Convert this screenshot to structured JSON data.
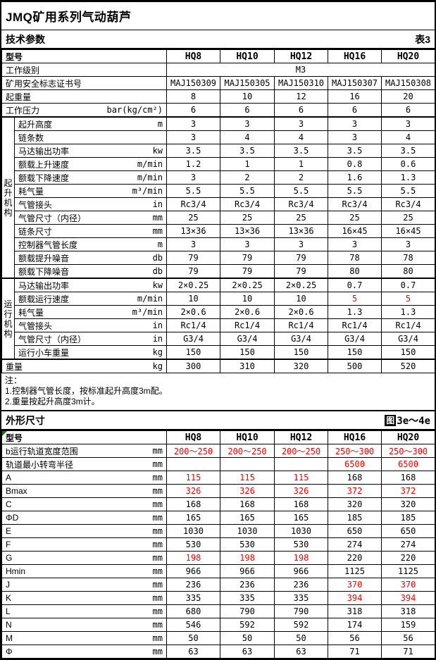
{
  "page": {
    "title": "JMQ矿用系列气动葫芦"
  },
  "colors": {
    "highlight_red": "#FF0000",
    "marker_green": "#0B7A0B",
    "border": "#000000",
    "background": "#FFFFFF"
  },
  "tech": {
    "heading": "技术参数",
    "ref": "表3",
    "model_label": "型号",
    "columns": [
      "HQ8",
      "HQ10",
      "HQ12",
      "HQ16",
      "HQ20"
    ],
    "groups": {
      "lift": "起升机构",
      "travel": "运行机构"
    },
    "rows": [
      {
        "label": "工作级别",
        "unit": "",
        "merged": "M3"
      },
      {
        "label": "矿用安全标志证书号",
        "unit": "",
        "values": [
          "MAJ150309",
          "MAJ150305",
          "MAJ150310",
          "MAJ150307",
          "MAJ150308"
        ]
      },
      {
        "label": "起重量",
        "unit": "",
        "values": [
          "8",
          "10",
          "12",
          "16",
          "20"
        ]
      },
      {
        "label": "工作压力",
        "unit": "bar(kg/cm²)",
        "values": [
          "6",
          "6",
          "6",
          "6",
          "6"
        ]
      },
      {
        "group": "lift",
        "label": "起升高度",
        "unit": "m",
        "values": [
          "3",
          "3",
          "3",
          "3",
          "3"
        ],
        "sep": true
      },
      {
        "group": "lift",
        "label": "链条数",
        "unit": "",
        "values": [
          "3",
          "4",
          "4",
          "3",
          "4"
        ]
      },
      {
        "group": "lift",
        "label": "马达输出功率",
        "unit": "kw",
        "values": [
          "3.5",
          "3.5",
          "3.5",
          "3.5",
          "3.5"
        ]
      },
      {
        "group": "lift",
        "label": "额载上升速度",
        "unit": "m/min",
        "values": [
          "1.2",
          "1",
          "1",
          "0.8",
          "0.6"
        ]
      },
      {
        "group": "lift",
        "label": "额载下降速度",
        "unit": "m/min",
        "values": [
          "3",
          "2",
          "2",
          "1.6",
          "1.3"
        ]
      },
      {
        "group": "lift",
        "label": "耗气量",
        "unit": "m³/min",
        "values": [
          "5.5",
          "5.5",
          "5.5",
          "5.5",
          "5.5"
        ]
      },
      {
        "group": "lift",
        "label": "气管接头",
        "unit": "in",
        "values": [
          "Rc3/4",
          "Rc3/4",
          "Rc3/4",
          "Rc3/4",
          "Rc3/4"
        ]
      },
      {
        "group": "lift",
        "label": "气管尺寸（内径）",
        "unit": "mm",
        "values": [
          "25",
          "25",
          "25",
          "25",
          "25"
        ]
      },
      {
        "group": "lift",
        "label": "链条尺寸",
        "unit": "mm",
        "values": [
          "13×36",
          "13×36",
          "13×36",
          "16×45",
          "16×45"
        ]
      },
      {
        "group": "lift",
        "label": "控制器气管长度",
        "unit": "m",
        "values": [
          "3",
          "3",
          "3",
          "3",
          "3"
        ]
      },
      {
        "group": "lift",
        "label": "额载提升噪音",
        "unit": "db",
        "values": [
          "79",
          "79",
          "79",
          "78",
          "78"
        ]
      },
      {
        "group": "lift",
        "label": "额载下降噪音",
        "unit": "db",
        "values": [
          "79",
          "79",
          "79",
          "80",
          "80"
        ]
      },
      {
        "group": "travel",
        "label": "马达输出功率",
        "unit": "kw",
        "values": [
          "2×0.25",
          "2×0.25",
          "2×0.25",
          "0.7",
          "0.7"
        ],
        "sep": true
      },
      {
        "group": "travel",
        "label": "额载运行速度",
        "unit": "m/min",
        "values": [
          "10",
          "10",
          "10",
          "5",
          "5"
        ],
        "red": [
          3,
          4
        ]
      },
      {
        "group": "travel",
        "label": "耗气量",
        "unit": "m³/min",
        "values": [
          "2×0.6",
          "2×0.6",
          "2×0.6",
          "1.3",
          "1.3"
        ]
      },
      {
        "group": "travel",
        "label": "气管接头",
        "unit": "in",
        "values": [
          "Rc1/4",
          "Rc1/4",
          "Rc1/4",
          "Rc1/4",
          "Rc1/4"
        ]
      },
      {
        "group": "travel",
        "label": "气管尺寸（内径）",
        "unit": "in",
        "values": [
          "G3/4",
          "G3/4",
          "G3/4",
          "G3/4",
          "G3/4"
        ]
      },
      {
        "group": "travel",
        "label": "运行小车重量",
        "unit": "kg",
        "values": [
          "150",
          "150",
          "150",
          "150",
          "150"
        ]
      },
      {
        "label": "重量",
        "unit": "kg",
        "values": [
          "300",
          "310",
          "320",
          "500",
          "520"
        ],
        "sep": true
      }
    ]
  },
  "notes": {
    "title": "注：",
    "lines": [
      "1.控制器气管长度，按标准起升高度3m配。",
      "2.重量按起升高度3m计。"
    ]
  },
  "dims": {
    "heading": "外形尺寸",
    "ref_icon": "图",
    "ref": "3e～4e",
    "model_label": "型号",
    "columns": [
      "HQ8",
      "HQ10",
      "HQ12",
      "HQ16",
      "HQ20"
    ],
    "rows": [
      {
        "label": "b运行轨道宽度范围",
        "unit": "mm",
        "values": [
          "200～250",
          "200～250",
          "200～250",
          "250～300",
          "250～300"
        ],
        "red": [
          0,
          1,
          2,
          3,
          4
        ]
      },
      {
        "label": "轨道最小转弯半径",
        "unit": "mm",
        "values": [
          "",
          "",
          "",
          "6500",
          "6500"
        ],
        "red": [
          3,
          4
        ]
      },
      {
        "label": "A",
        "unit": "mm",
        "values": [
          "115",
          "115",
          "115",
          "168",
          "168"
        ],
        "red": [
          0,
          1,
          2
        ]
      },
      {
        "label": "Bmax",
        "unit": "mm",
        "values": [
          "326",
          "326",
          "326",
          "372",
          "372"
        ],
        "red": [
          0,
          1,
          2,
          3,
          4
        ]
      },
      {
        "label": "C",
        "unit": "mm",
        "values": [
          "168",
          "168",
          "168",
          "320",
          "320"
        ]
      },
      {
        "label": "ΦD",
        "unit": "mm",
        "values": [
          "165",
          "165",
          "165",
          "185",
          "185"
        ]
      },
      {
        "label": "E",
        "unit": "mm",
        "values": [
          "1030",
          "1030",
          "1030",
          "650",
          "650"
        ]
      },
      {
        "label": "F",
        "unit": "mm",
        "values": [
          "530",
          "530",
          "530",
          "274",
          "274"
        ]
      },
      {
        "label": "G",
        "unit": "mm",
        "values": [
          "198",
          "198",
          "198",
          "220",
          "220"
        ],
        "red": [
          0,
          1,
          2
        ]
      },
      {
        "label": "Hmin",
        "unit": "mm",
        "values": [
          "966",
          "966",
          "966",
          "1125",
          "1125"
        ]
      },
      {
        "label": "J",
        "unit": "mm",
        "values": [
          "236",
          "236",
          "236",
          "370",
          "370"
        ],
        "red": [
          3,
          4
        ]
      },
      {
        "label": "K",
        "unit": "mm",
        "values": [
          "335",
          "335",
          "335",
          "394",
          "394"
        ],
        "red": [
          3,
          4
        ]
      },
      {
        "label": "L",
        "unit": "mm",
        "values": [
          "680",
          "790",
          "790",
          "318",
          "318"
        ]
      },
      {
        "label": "N",
        "unit": "mm",
        "values": [
          "546",
          "592",
          "592",
          "174",
          "159"
        ]
      },
      {
        "label": "M",
        "unit": "mm",
        "values": [
          "50",
          "50",
          "50",
          "56",
          "56"
        ]
      },
      {
        "label": "Φ",
        "unit": "mm",
        "values": [
          "63",
          "63",
          "63",
          "71",
          "71"
        ]
      }
    ]
  }
}
